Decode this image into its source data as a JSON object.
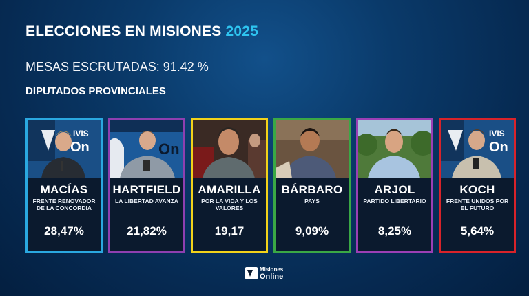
{
  "header": {
    "title_main": "ELECCIONES EN MISIONES",
    "title_year": "2025",
    "mesas": "MESAS ESCRUTADAS: 91.42 %",
    "section": "DIPUTADOS PROVINCIALES"
  },
  "candidates": [
    {
      "name": "MACÍAS",
      "party": "FRENTE RENOVADOR DE LA CONCORDIA",
      "pct": "28,47%",
      "border": "#2aa8e0"
    },
    {
      "name": "HARTFIELD",
      "party": "LA LIBERTAD AVANZA",
      "pct": "21,82%",
      "border": "#8e3fb0"
    },
    {
      "name": "AMARILLA",
      "party": "POR LA VIDA Y LOS VALORES",
      "pct": "19,17",
      "border": "#f2d21a"
    },
    {
      "name": "BÁRBARO",
      "party": "PAYS",
      "pct": "9,09%",
      "border": "#3aa845"
    },
    {
      "name": "ARJOL",
      "party": "PARTIDO LIBERTARIO",
      "pct": "8,25%",
      "border": "#9b3fb5"
    },
    {
      "name": "KOCH",
      "party": "FRENTE UNIDOS POR EL FUTURO",
      "pct": "5,64%",
      "border": "#d8232a"
    }
  ],
  "logo": {
    "line1": "Misiones",
    "line2": "Online"
  },
  "colors": {
    "accent_year": "#2ec4f0",
    "background": "#0a3a6a"
  }
}
